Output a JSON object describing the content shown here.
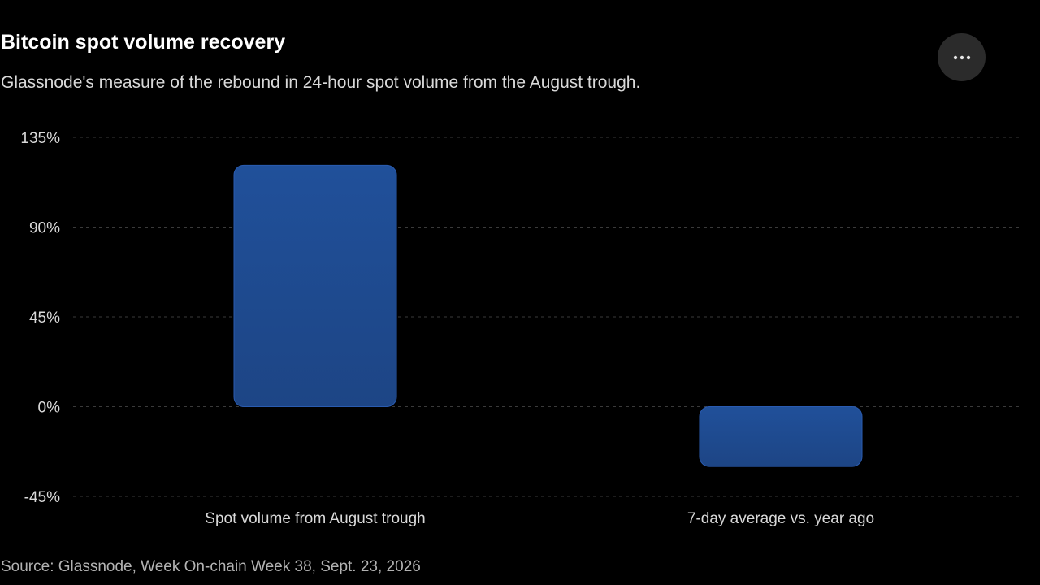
{
  "header": {
    "title": "Bitcoin spot volume recovery",
    "subtitle": "Glassnode's measure of the rebound in 24-hour spot volume from the August trough.",
    "more_icon": "more-horizontal-icon"
  },
  "footer": {
    "source": "Source: Glassnode, Week On-chain Week 38, Sept. 23, 2026"
  },
  "colors": {
    "bar": "#1f4b92",
    "grid": "#3a3a3a",
    "tick_text": "#d9d9d9"
  },
  "chart_data": {
    "type": "bar",
    "title": "Bitcoin spot volume recovery",
    "subtitle": "Glassnode's measure of the rebound in 24-hour spot volume from the August trough.",
    "categories": [
      "Spot volume from August trough",
      "7-day average vs. year ago"
    ],
    "values": [
      121,
      -30
    ],
    "unit": "%",
    "ylim": [
      -45,
      135
    ],
    "yticks": [
      135,
      90,
      45,
      0,
      -45
    ],
    "ytick_labels": [
      "135%",
      "90%",
      "45%",
      "0%",
      "-45%"
    ],
    "xlabel": "",
    "ylabel": "",
    "grid": true,
    "grid_style": "dashed",
    "legend": "none"
  }
}
